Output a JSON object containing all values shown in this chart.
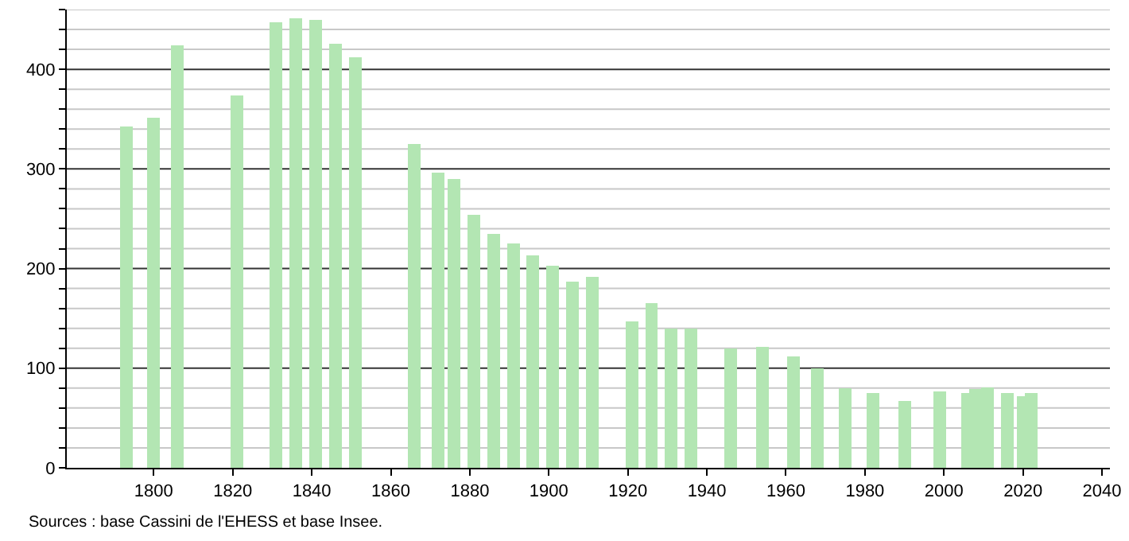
{
  "chart_data": {
    "type": "bar",
    "x": [
      1793,
      1800,
      1806,
      1821,
      1831,
      1836,
      1841,
      1846,
      1851,
      1866,
      1872,
      1876,
      1881,
      1886,
      1891,
      1896,
      1901,
      1906,
      1911,
      1921,
      1926,
      1931,
      1936,
      1946,
      1954,
      1962,
      1968,
      1975,
      1982,
      1990,
      1999,
      2006,
      2008,
      2011,
      2016,
      2020,
      2022
    ],
    "values": [
      343,
      351,
      424,
      374,
      447,
      451,
      450,
      426,
      412,
      325,
      296,
      290,
      254,
      235,
      225,
      213,
      203,
      187,
      192,
      147,
      165,
      140,
      140,
      120,
      121,
      112,
      100,
      80,
      75,
      67,
      77,
      75,
      79,
      81,
      75,
      72,
      75
    ],
    "color": "#b3e6b3",
    "xlim": [
      1778,
      2042
    ],
    "xticks": [
      1800,
      1820,
      1840,
      1860,
      1880,
      1900,
      1920,
      1940,
      1960,
      1980,
      2000,
      2020,
      2040
    ],
    "ylim": [
      0,
      460
    ],
    "yticks": [
      0,
      {
        "value": 20,
        "label": null
      },
      {
        "value": 40,
        "label": null
      },
      {
        "value": 60,
        "label": null
      },
      {
        "value": 80,
        "label": null
      },
      100,
      {
        "value": 120,
        "label": null
      },
      {
        "value": 140,
        "label": null
      },
      {
        "value": 160,
        "label": null
      },
      {
        "value": 180,
        "label": null
      },
      200,
      {
        "value": 220,
        "label": null
      },
      {
        "value": 240,
        "label": null
      },
      {
        "value": 260,
        "label": null
      },
      {
        "value": 280,
        "label": null
      },
      300,
      {
        "value": 320,
        "label": null
      },
      {
        "value": 340,
        "label": null
      },
      {
        "value": 360,
        "label": null
      },
      {
        "value": 380,
        "label": null
      },
      400,
      {
        "value": 420,
        "label": null
      },
      {
        "value": 440,
        "label": null
      },
      {
        "value": 460,
        "label": null
      }
    ],
    "grid": "y",
    "legend": false,
    "annotations": [
      "Sources : base Cassini de l'EHESS et base Insee."
    ]
  }
}
